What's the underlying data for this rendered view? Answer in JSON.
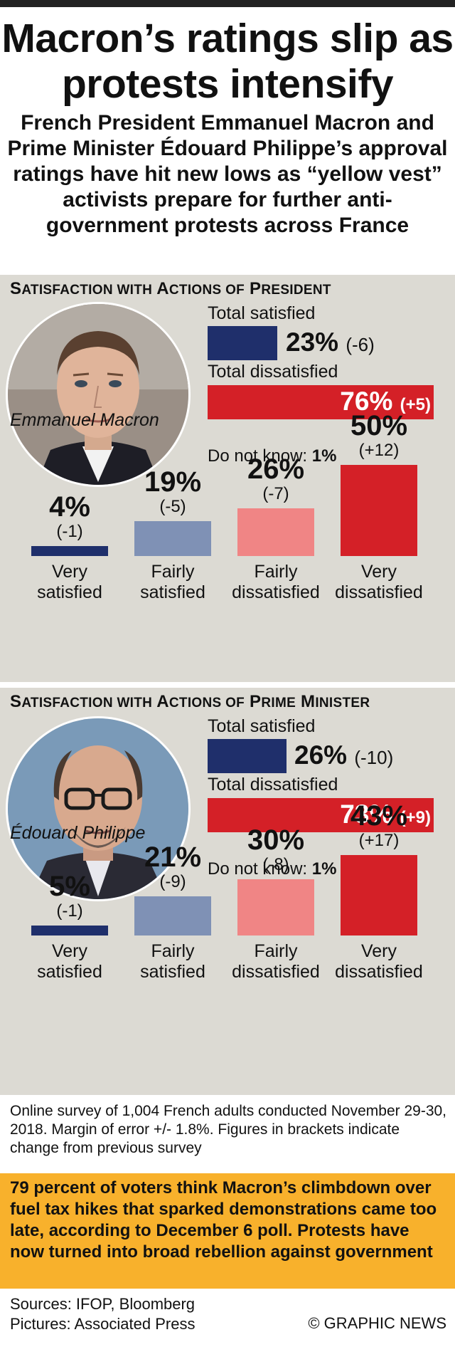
{
  "title": "Macron’s ratings slip as protests intensify",
  "standfirst": "French President Emmanuel Macron and Prime Minister Édouard Philippe’s approval ratings have hit new lows as “yellow vest” activists prepare for further anti-government protests across France",
  "chart_data": [
    {
      "type": "bar",
      "title": "Satisfaction with Actions of President",
      "person": "Emmanuel Macron",
      "total_satisfied": {
        "label": "Total satisfied",
        "value": 23,
        "value_text": "23%",
        "change_text": "(-6)"
      },
      "total_dissatisfied": {
        "label": "Total dissatisfied",
        "value": 76,
        "value_text": "76%",
        "change_text": "(+5)"
      },
      "do_not_know": {
        "label": "Do not know:",
        "value_text": "1%"
      },
      "categories": [
        "Very satisfied",
        "Fairly satisfied",
        "Fairly dissatisfied",
        "Very dissatisfied"
      ],
      "values": [
        4,
        19,
        26,
        50
      ],
      "value_labels": [
        "4%",
        "19%",
        "26%",
        "50%"
      ],
      "change_labels": [
        "(-1)",
        "(-5)",
        "(-7)",
        "(+12)"
      ],
      "colors": [
        "#1f2f6b",
        "#7f91b5",
        "#f08585",
        "#d42027"
      ]
    },
    {
      "type": "bar",
      "title": "Satisfaction with Actions of Prime Minister",
      "person": "Édouard Philippe",
      "total_satisfied": {
        "label": "Total satisfied",
        "value": 26,
        "value_text": "26%",
        "change_text": "(-10)"
      },
      "total_dissatisfied": {
        "label": "Total dissatisfied",
        "value": 73,
        "value_text": "73%",
        "change_text": "(+9)"
      },
      "do_not_know": {
        "label": "Do not know:",
        "value_text": "1%"
      },
      "categories": [
        "Very satisfied",
        "Fairly satisfied",
        "Fairly dissatisfied",
        "Very dissatisfied"
      ],
      "values": [
        5,
        21,
        30,
        43
      ],
      "value_labels": [
        "5%",
        "21%",
        "30%",
        "43%"
      ],
      "change_labels": [
        "(-1)",
        "(-9)",
        "(-8)",
        "(+17)"
      ],
      "colors": [
        "#1f2f6b",
        "#7f91b5",
        "#f08585",
        "#d42027"
      ]
    }
  ],
  "note": "Online survey of 1,004 French adults conducted November 29-30, 2018. Margin of error +/- 1.8%. Figures in brackets indicate change from previous survey",
  "callout": "79 percent of voters think Macron’s climbdown over fuel tax hikes that sparked demonstrations came too late, according to December 6 poll. Protests have now turned into broad rebellion against government",
  "sources": "Sources: IFOP, Bloomberg",
  "pictures": "Pictures: Associated Press",
  "credit": "© GRAPHIC NEWS"
}
